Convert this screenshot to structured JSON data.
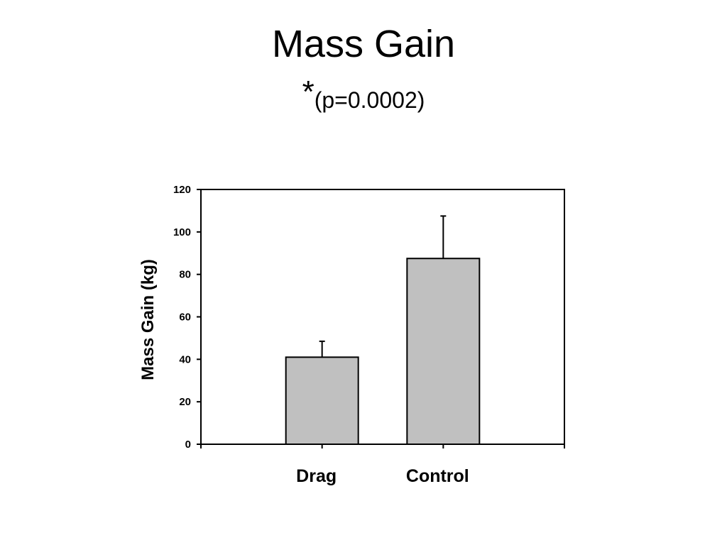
{
  "slide": {
    "title": "Mass Gain",
    "subtitle_star": "*",
    "subtitle_p": "(p=0.0002)"
  },
  "chart_data": {
    "type": "bar",
    "title": "Mass Gain",
    "subtitle": "*(p=0.0002)",
    "categories": [
      "Drag",
      "Control"
    ],
    "values": [
      41,
      87.5
    ],
    "error_upper": [
      48.5,
      107.5
    ],
    "xlabel": "",
    "ylabel": "Mass Gain (kg)",
    "ylim": [
      0,
      120
    ],
    "yticks": [
      0,
      20,
      40,
      60,
      80,
      100,
      120
    ],
    "grid": false,
    "legend": "none",
    "bar_color": "#c0c0c0",
    "edge_color": "#000000"
  }
}
